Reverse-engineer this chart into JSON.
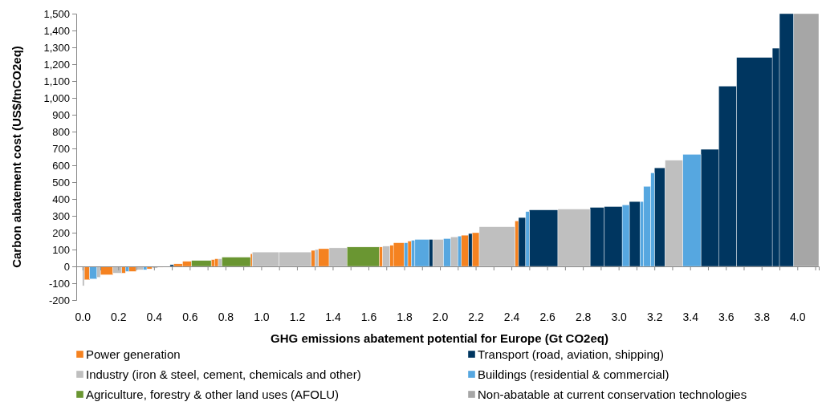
{
  "chart_data": {
    "type": "histogram",
    "xlabel": "GHG emissions abatement potential for Europe (Gt CO2eq)",
    "ylabel": "Carbon abatement cost (US$/tnCO2eq)",
    "bins": [
      0,
      0.01,
      0.04,
      0.08,
      0.1,
      0.17,
      0.22,
      0.24,
      0.26,
      0.3,
      0.34,
      0.36,
      0.39,
      0.42,
      0.45,
      0.49,
      0.51,
      0.56,
      0.61,
      0.72,
      0.74,
      0.76,
      0.78,
      0.94,
      0.95,
      1.1,
      1.28,
      1.3,
      1.32,
      1.38,
      1.48,
      1.66,
      1.68,
      1.72,
      1.74,
      1.8,
      1.82,
      1.84,
      1.86,
      1.94,
      1.96,
      2.02,
      2.06,
      2.1,
      2.12,
      2.16,
      2.18,
      2.22,
      2.42,
      2.44,
      2.48,
      2.5,
      2.66,
      2.84,
      2.92,
      3.02,
      3.06,
      3.12,
      3.14,
      3.18,
      3.2,
      3.26,
      3.36,
      3.46,
      3.56,
      3.66,
      3.86,
      3.9,
      3.98,
      4.12
    ],
    "series": [
      {
        "name": "Power generation",
        "color": "#f58220",
        "values": [
          null,
          -80,
          null,
          null,
          -50,
          null,
          -40,
          null,
          -30,
          null,
          null,
          -15,
          null,
          -5,
          null,
          null,
          15,
          30,
          null,
          40,
          45,
          null,
          null,
          75,
          null,
          null,
          95,
          null,
          105,
          null,
          null,
          115,
          null,
          125,
          140,
          null,
          150,
          null,
          null,
          null,
          null,
          null,
          null,
          null,
          185,
          null,
          200,
          null,
          270,
          null,
          null,
          null,
          null,
          null,
          null,
          null,
          null,
          null,
          null,
          null,
          null,
          null,
          null,
          null,
          null,
          null,
          null,
          null,
          null
        ]
      },
      {
        "name": "Transport (road, aviation, shipping)",
        "color": "#003660",
        "values": [
          null,
          null,
          null,
          null,
          null,
          null,
          null,
          null,
          null,
          null,
          null,
          null,
          null,
          null,
          null,
          10,
          null,
          null,
          null,
          null,
          null,
          null,
          null,
          null,
          null,
          null,
          null,
          null,
          null,
          null,
          null,
          null,
          null,
          null,
          null,
          null,
          null,
          null,
          null,
          160,
          null,
          null,
          null,
          null,
          null,
          195,
          null,
          null,
          null,
          290,
          null,
          335,
          null,
          350,
          355,
          null,
          385,
          null,
          null,
          null,
          585,
          null,
          null,
          695,
          1070,
          1240,
          1295,
          1500,
          null
        ]
      },
      {
        "name": "Industry (iron & steel, cement, chemicals and other)",
        "color": "#bfbfbf",
        "values": [
          -115,
          null,
          null,
          -65,
          null,
          -40,
          null,
          null,
          null,
          -20,
          null,
          null,
          -10,
          null,
          null,
          null,
          null,
          null,
          null,
          null,
          null,
          45,
          null,
          null,
          85,
          85,
          null,
          100,
          null,
          110,
          null,
          null,
          120,
          null,
          null,
          null,
          null,
          null,
          null,
          null,
          160,
          null,
          175,
          null,
          null,
          null,
          null,
          235,
          null,
          null,
          null,
          null,
          340,
          null,
          null,
          null,
          null,
          null,
          null,
          null,
          null,
          630,
          null,
          null,
          null,
          null,
          null,
          null,
          null
        ]
      },
      {
        "name": "Buildings (residential & commercial)",
        "color": "#56a7e0",
        "values": [
          null,
          null,
          -75,
          null,
          null,
          null,
          null,
          -30,
          null,
          null,
          -20,
          null,
          null,
          null,
          null,
          null,
          null,
          null,
          null,
          null,
          null,
          null,
          null,
          null,
          null,
          null,
          null,
          null,
          null,
          null,
          null,
          null,
          null,
          null,
          null,
          140,
          null,
          155,
          160,
          null,
          null,
          165,
          null,
          180,
          null,
          null,
          null,
          null,
          null,
          null,
          325,
          null,
          null,
          null,
          null,
          365,
          null,
          385,
          475,
          555,
          null,
          null,
          665,
          null,
          null,
          null,
          null,
          null,
          null
        ]
      },
      {
        "name": "Agriculture, forestry & other land uses (AFOLU)",
        "color": "#6a9632",
        "values": [
          null,
          null,
          null,
          null,
          null,
          null,
          null,
          null,
          null,
          null,
          null,
          null,
          null,
          null,
          null,
          null,
          null,
          null,
          35,
          null,
          null,
          null,
          55,
          null,
          null,
          null,
          null,
          null,
          null,
          null,
          115,
          null,
          null,
          null,
          null,
          null,
          null,
          null,
          null,
          null,
          null,
          null,
          null,
          null,
          null,
          null,
          null,
          null,
          null,
          null,
          null,
          null,
          null,
          null,
          null,
          null,
          null,
          null,
          null,
          null,
          null,
          null,
          null,
          null,
          null,
          null,
          null,
          null,
          null
        ]
      },
      {
        "name": "Non-abatable at current conservation technologies",
        "color": "#a6a6a6",
        "values": [
          null,
          null,
          null,
          null,
          null,
          null,
          null,
          null,
          null,
          null,
          null,
          null,
          null,
          null,
          null,
          null,
          null,
          null,
          null,
          null,
          null,
          null,
          null,
          null,
          null,
          null,
          null,
          null,
          null,
          null,
          null,
          null,
          null,
          null,
          null,
          null,
          null,
          null,
          null,
          null,
          null,
          null,
          null,
          null,
          null,
          null,
          null,
          null,
          null,
          null,
          null,
          null,
          null,
          null,
          null,
          null,
          null,
          null,
          null,
          null,
          null,
          null,
          null,
          null,
          null,
          null,
          null,
          null,
          1500
        ]
      }
    ],
    "xlim": [
      -0.035,
      4.12
    ],
    "xticks": [
      {
        "value": 0,
        "label": "0.0"
      },
      {
        "value": 0.1,
        "label": null
      },
      0.2,
      {
        "value": 0.3,
        "label": null
      },
      0.4,
      {
        "value": 0.5,
        "label": null
      },
      0.6,
      {
        "value": 0.7,
        "label": null
      },
      0.8,
      {
        "value": 0.9,
        "label": null
      },
      {
        "value": 1,
        "label": "1.0"
      },
      {
        "value": 1.1,
        "label": null
      },
      1.2,
      {
        "value": 1.3,
        "label": null
      },
      1.4,
      {
        "value": 1.5,
        "label": null
      },
      1.6,
      {
        "value": 1.7,
        "label": null
      },
      1.8,
      {
        "value": 1.9,
        "label": null
      },
      {
        "value": 2,
        "label": "2.0"
      },
      {
        "value": 2.1,
        "label": null
      },
      2.2,
      {
        "value": 2.3,
        "label": null
      },
      2.4,
      {
        "value": 2.5,
        "label": null
      },
      2.6,
      {
        "value": 2.7,
        "label": null
      },
      2.8,
      {
        "value": 2.9,
        "label": null
      },
      {
        "value": 3,
        "label": "3.0"
      },
      {
        "value": 3.1,
        "label": null
      },
      3.2,
      {
        "value": 3.3,
        "label": null
      },
      3.4,
      {
        "value": 3.5,
        "label": null
      },
      3.6,
      {
        "value": 3.7,
        "label": null
      },
      3.8,
      {
        "value": 3.9,
        "label": null
      },
      {
        "value": 4,
        "label": "4.0"
      },
      {
        "value": 4.1,
        "label": null
      }
    ],
    "ylim": [
      -200,
      1500
    ],
    "yticks": [
      -200,
      -100,
      0,
      100,
      200,
      300,
      400,
      500,
      600,
      700,
      800,
      900,
      {
        "value": 1000,
        "label": "1,000"
      },
      {
        "value": 1100,
        "label": "1,100"
      },
      {
        "value": 1200,
        "label": "1,200"
      },
      {
        "value": 1300,
        "label": "1,300"
      },
      {
        "value": 1400,
        "label": "1,400"
      },
      {
        "value": 1500,
        "label": "1,500"
      }
    ],
    "grid": false,
    "legend": "bottom"
  }
}
